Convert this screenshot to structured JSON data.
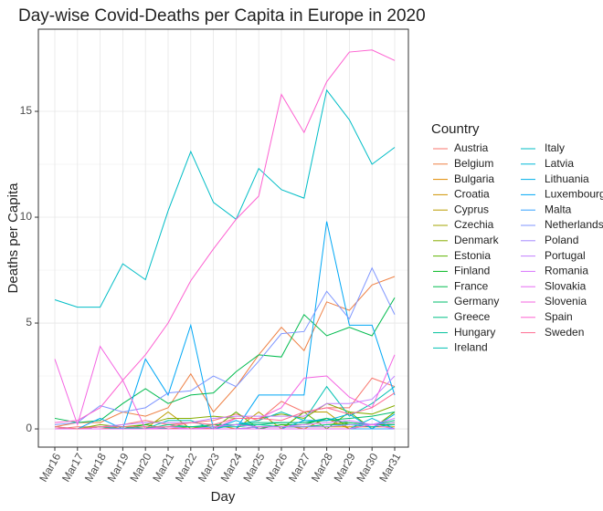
{
  "chart_data": {
    "type": "line",
    "title": "Day-wise Covid-Deaths per Capita in Europe in 2020",
    "x_label": "Day",
    "y_label": "Deaths per Capita",
    "legend_title": "Country",
    "categories": [
      "Mar16",
      "Mar17",
      "Mar18",
      "Mar19",
      "Mar20",
      "Mar21",
      "Mar22",
      "Mar23",
      "Mar24",
      "Mar25",
      "Mar26",
      "Mar27",
      "Mar28",
      "Mar29",
      "Mar30",
      "Mar31"
    ],
    "ylim": [
      -0.86,
      18.88
    ],
    "yticks": [
      0,
      5,
      10,
      15
    ],
    "grid": true,
    "series": [
      {
        "name": "Austria",
        "color": "#F8766D",
        "values": [
          0,
          0.1,
          0.1,
          0.2,
          0.4,
          0.2,
          0.3,
          0.4,
          0.7,
          0.4,
          1.3,
          0.8,
          1.0,
          1.0,
          2.4,
          2.0
        ]
      },
      {
        "name": "Belgium",
        "color": "#EE8044",
        "values": [
          0.1,
          0.3,
          0.3,
          0.8,
          0.6,
          1.0,
          2.6,
          0.8,
          2.0,
          3.5,
          4.8,
          3.7,
          6.0,
          5.6,
          6.8,
          7.2
        ]
      },
      {
        "name": "Bulgaria",
        "color": "#E18A00",
        "values": [
          0,
          0,
          0,
          0.1,
          0,
          0,
          0.1,
          0,
          0,
          0.1,
          0.1,
          0.1,
          0.1,
          0.1,
          0.1,
          0.1
        ]
      },
      {
        "name": "Croatia",
        "color": "#D09400",
        "values": [
          0,
          0,
          0,
          0,
          0,
          0,
          0,
          0.2,
          0,
          0,
          0.2,
          0,
          0.5,
          0,
          0.2,
          0.2
        ]
      },
      {
        "name": "Cyprus",
        "color": "#BB9D00",
        "values": [
          0,
          0,
          0,
          0,
          0,
          0.8,
          0,
          0,
          0,
          0.8,
          0,
          0.8,
          0.8,
          0,
          0,
          0.8
        ]
      },
      {
        "name": "Czechia",
        "color": "#A3A500",
        "values": [
          0,
          0,
          0,
          0,
          0,
          0,
          0,
          0,
          0,
          0.1,
          0.1,
          0.1,
          0.2,
          0.3,
          0.2,
          0.3
        ]
      },
      {
        "name": "Denmark",
        "color": "#86AC00",
        "values": [
          0,
          0,
          0.2,
          0.1,
          0.2,
          0.5,
          0.5,
          0.6,
          0.5,
          0.5,
          0.7,
          0.5,
          1.2,
          0.8,
          0.7,
          1.1
        ]
      },
      {
        "name": "Estonia",
        "color": "#5EB300",
        "values": [
          0,
          0,
          0,
          0,
          0,
          0,
          0,
          0,
          0.8,
          0,
          0,
          0.8,
          0,
          0.8,
          0,
          0.8
        ]
      },
      {
        "name": "Finland",
        "color": "#00B81F",
        "values": [
          0,
          0,
          0,
          0,
          0.2,
          0,
          0,
          0,
          0,
          0,
          0.2,
          0.2,
          0.5,
          0.2,
          0.2,
          0.2
        ]
      },
      {
        "name": "France",
        "color": "#00BB4E",
        "values": [
          0.5,
          0.3,
          0.4,
          1.2,
          1.9,
          1.2,
          1.6,
          1.7,
          2.7,
          3.5,
          3.4,
          5.4,
          4.4,
          4.8,
          4.4,
          6.2
        ]
      },
      {
        "name": "Germany",
        "color": "#00BE6C",
        "values": [
          0,
          0,
          0.1,
          0,
          0,
          0.1,
          0.1,
          0.1,
          0.2,
          0.2,
          0.3,
          0.3,
          0.4,
          0.5,
          0.6,
          0.8
        ]
      },
      {
        "name": "Greece",
        "color": "#00C085",
        "values": [
          0.1,
          0,
          0.1,
          0.1,
          0,
          0.2,
          0.1,
          0.2,
          0.2,
          0.3,
          0.3,
          0.3,
          0.5,
          0.3,
          0.2,
          0.4
        ]
      },
      {
        "name": "Hungary",
        "color": "#00C19C",
        "values": [
          0,
          0,
          0.1,
          0,
          0.1,
          0,
          0,
          0.1,
          0.1,
          0.2,
          0.1,
          0.1,
          0.2,
          0.2,
          0.1,
          0.2
        ]
      },
      {
        "name": "Ireland",
        "color": "#00C0B2",
        "values": [
          0,
          0,
          0,
          0,
          0,
          0.4,
          0.4,
          0,
          0.2,
          0.4,
          0.8,
          0.4,
          2.0,
          0.6,
          1.2,
          2.0
        ]
      },
      {
        "name": "Italy",
        "color": "#00BDC6",
        "values": [
          6.1,
          5.75,
          5.75,
          7.8,
          7.05,
          10.3,
          13.1,
          10.7,
          9.9,
          12.3,
          11.3,
          10.9,
          16.0,
          14.6,
          12.5,
          13.3
        ]
      },
      {
        "name": "Latvia",
        "color": "#00B8D8",
        "values": [
          0,
          0,
          0,
          0,
          0,
          0,
          0,
          0,
          0,
          0,
          0,
          0,
          0,
          0,
          0.5,
          0
        ]
      },
      {
        "name": "Lithuania",
        "color": "#00B0E8",
        "values": [
          0,
          0,
          0,
          0,
          0,
          0,
          0,
          0,
          0.4,
          0,
          0,
          0.4,
          0.4,
          0.7,
          0,
          0.7
        ]
      },
      {
        "name": "Luxembourg",
        "color": "#00A7F5",
        "values": [
          0,
          0,
          0.5,
          0,
          3.3,
          1.6,
          4.9,
          0,
          0,
          1.6,
          1.6,
          1.6,
          9.8,
          4.9,
          4.9,
          1.6
        ]
      },
      {
        "name": "Malta",
        "color": "#35A2FF",
        "values": [
          0,
          0,
          0,
          0,
          0,
          0,
          0,
          0,
          0,
          0,
          0,
          0,
          0,
          0,
          0,
          0
        ]
      },
      {
        "name": "Netherlands",
        "color": "#7F96FF",
        "values": [
          0.2,
          0.3,
          1.1,
          0.8,
          1.0,
          1.7,
          1.8,
          2.5,
          2.0,
          3.2,
          4.5,
          4.6,
          6.5,
          5.2,
          7.6,
          5.4
        ]
      },
      {
        "name": "Poland",
        "color": "#A58AFF",
        "values": [
          0,
          0,
          0,
          0,
          0,
          0,
          0,
          0,
          0,
          0.1,
          0.1,
          0.1,
          0.1,
          0.2,
          0.2,
          0.3
        ]
      },
      {
        "name": "Portugal",
        "color": "#C27FFF",
        "values": [
          0,
          0,
          0.1,
          0.2,
          0.3,
          0.3,
          0.3,
          0.5,
          0.6,
          0.6,
          0.6,
          0.6,
          1.2,
          1.2,
          1.4,
          2.5
        ]
      },
      {
        "name": "Romania",
        "color": "#D874FD",
        "values": [
          0,
          0,
          0,
          0,
          0,
          0.1,
          0,
          0.1,
          0.2,
          0.1,
          0.1,
          0.2,
          0.3,
          0.4,
          0.2,
          0.5
        ]
      },
      {
        "name": "Slovakia",
        "color": "#E76BF3",
        "values": [
          0,
          0,
          0,
          0,
          0,
          0,
          0,
          0,
          0,
          0,
          0,
          0,
          0,
          0,
          0.2,
          0
        ]
      },
      {
        "name": "Slovenia",
        "color": "#F464E2",
        "values": [
          3.3,
          0.2,
          3.9,
          2.3,
          0,
          0,
          0,
          0,
          0.5,
          0.5,
          1.0,
          2.4,
          2.5,
          1.5,
          1.0,
          3.5
        ]
      },
      {
        "name": "Spain",
        "color": "#FD61D1",
        "values": [
          0.3,
          0.4,
          1.0,
          2.3,
          3.5,
          5.0,
          7.0,
          8.5,
          9.9,
          11.0,
          15.8,
          14.0,
          16.4,
          17.8,
          17.9,
          17.4
        ]
      },
      {
        "name": "Sweden",
        "color": "#FF6C91",
        "values": [
          0.1,
          0,
          0.1,
          0.1,
          0.1,
          0.1,
          0.3,
          0.2,
          0.5,
          0.5,
          0.4,
          0.8,
          1.0,
          0.7,
          1.0,
          1.7
        ]
      }
    ]
  }
}
